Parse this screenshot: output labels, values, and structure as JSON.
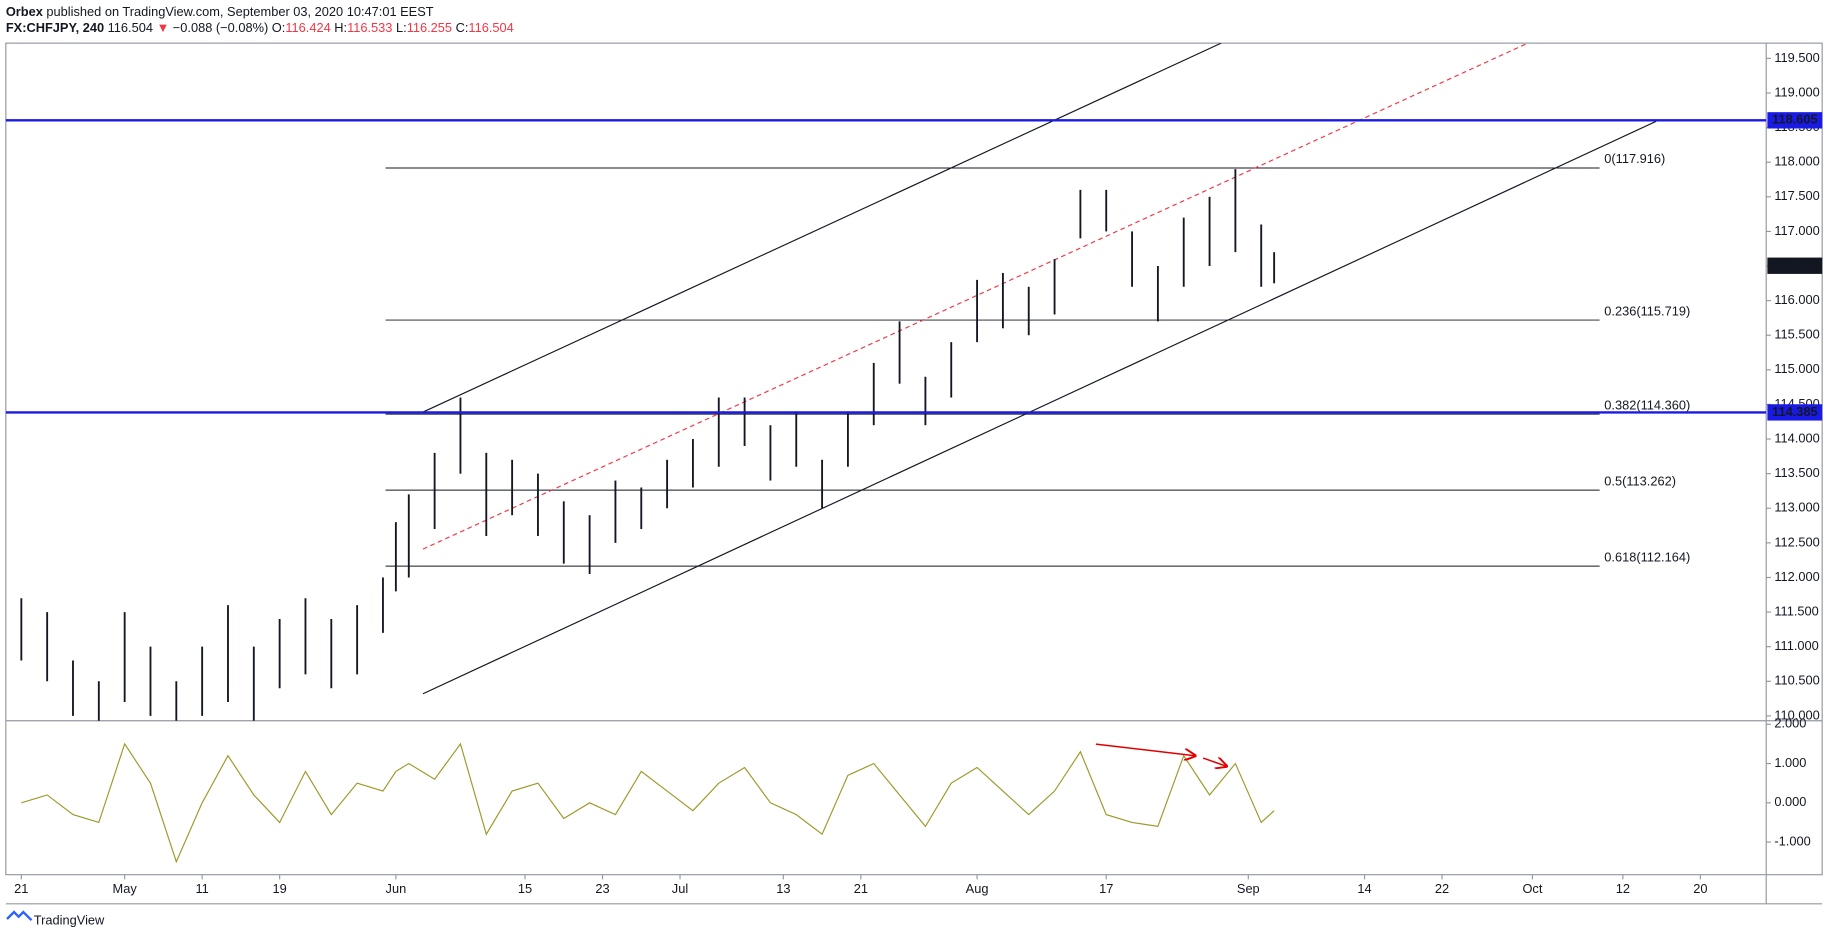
{
  "header": {
    "publisher": "Orbex",
    "published": "published on TradingView.com, September 03, 2020 10:47:01 EEST",
    "symbol": "FX:CHFJPY, 240",
    "last": "116.504",
    "change_arrow": "▼",
    "change": "−0.088 (−0.08%)",
    "o_label": "O:",
    "open": "116.424",
    "h_label": "H:",
    "high": "116.533",
    "l_label": "L:",
    "low": "116.255",
    "c_label": "C:",
    "close": "116.504"
  },
  "footer": {
    "brand": "TradingView"
  },
  "chart_data": [
    {
      "type": "ohlc",
      "color": "#131722",
      "x": [
        0,
        2,
        4,
        6,
        8,
        10,
        12,
        14,
        16,
        18,
        20,
        22,
        24,
        26,
        28,
        29,
        30,
        32,
        34,
        36,
        38,
        40,
        42,
        44,
        46,
        48,
        50,
        52,
        54,
        56,
        58,
        60,
        62,
        64,
        66,
        68,
        70,
        72,
        74,
        76,
        78,
        80,
        82,
        84,
        86,
        88,
        90,
        92,
        94,
        96,
        97
      ],
      "high": [
        111.7,
        111.5,
        110.8,
        110.5,
        111.5,
        111.0,
        110.5,
        111.0,
        111.6,
        111.0,
        111.4,
        111.7,
        111.4,
        111.6,
        112.0,
        112.8,
        113.2,
        113.8,
        114.6,
        113.8,
        113.7,
        113.5,
        113.1,
        112.9,
        113.4,
        113.3,
        113.7,
        114.0,
        114.6,
        114.6,
        114.2,
        114.4,
        113.7,
        114.4,
        115.1,
        115.7,
        114.9,
        115.4,
        116.3,
        116.4,
        116.2,
        116.6,
        117.6,
        117.6,
        117.0,
        116.5,
        117.2,
        117.5,
        117.9,
        117.1,
        116.7
      ],
      "low": [
        110.8,
        110.5,
        110.0,
        109.8,
        110.2,
        110.0,
        109.8,
        110.0,
        110.2,
        109.9,
        110.4,
        110.6,
        110.4,
        110.6,
        111.2,
        111.8,
        112.0,
        112.7,
        113.5,
        112.6,
        112.9,
        112.6,
        112.2,
        112.05,
        112.5,
        112.7,
        113.0,
        113.3,
        113.6,
        113.9,
        113.4,
        113.6,
        113.0,
        113.6,
        114.2,
        114.8,
        114.2,
        114.6,
        115.4,
        115.6,
        115.5,
        115.8,
        116.9,
        117.0,
        116.2,
        115.7,
        116.2,
        116.5,
        116.7,
        116.2,
        116.25
      ],
      "xlim": [
        -1.2,
        135.1
      ],
      "ylim": [
        109.93,
        119.72
      ],
      "yticks": [
        {
          "value": 110,
          "label": "110.000"
        },
        {
          "value": 110.5,
          "label": "110.500"
        },
        {
          "value": 111,
          "label": "111.000"
        },
        {
          "value": 111.5,
          "label": "111.500"
        },
        {
          "value": 112,
          "label": "112.000"
        },
        {
          "value": 112.5,
          "label": "112.500"
        },
        {
          "value": 113,
          "label": "113.000"
        },
        {
          "value": 113.5,
          "label": "113.500"
        },
        {
          "value": 114,
          "label": "114.000"
        },
        {
          "value": 114.5,
          "label": "114.500"
        },
        {
          "value": 115,
          "label": "115.000"
        },
        {
          "value": 115.5,
          "label": "115.500"
        },
        {
          "value": 116,
          "label": "116.000"
        },
        {
          "value": 116.5,
          "label": "116.500"
        },
        {
          "value": 117,
          "label": "117.000"
        },
        {
          "value": 117.5,
          "label": "117.500"
        },
        {
          "value": 118,
          "label": "118.000"
        },
        {
          "value": 118.5,
          "label": "118.500"
        },
        {
          "value": 119,
          "label": "119.000"
        },
        {
          "value": 119.5,
          "label": "119.500"
        }
      ],
      "hlines": [
        {
          "value": 118.605,
          "color": "#1a1ae6"
        },
        {
          "value": 114.385,
          "color": "#1a1ae6"
        }
      ],
      "fib_range": [
        28.2,
        122.2
      ],
      "fib": [
        {
          "value": 117.916,
          "label": "0(117.916)"
        },
        {
          "value": 115.719,
          "label": "0.236(115.719)"
        },
        {
          "value": 114.36,
          "label": "0.382(114.360)"
        },
        {
          "value": 113.262,
          "label": "0.5(113.262)"
        },
        {
          "value": 112.164,
          "label": "0.618(112.164)"
        }
      ],
      "trendlines": [
        {
          "x": [
            31.1,
            92.9
          ],
          "y": [
            114.39,
            119.72
          ],
          "color": "#131722",
          "dashed": false
        },
        {
          "x": [
            31.1,
            126.57
          ],
          "y": [
            110.32,
            118.59
          ],
          "color": "#131722",
          "dashed": false
        },
        {
          "x": [
            31.1,
            116.64
          ],
          "y": [
            112.41,
            119.72
          ],
          "color": "#f23645",
          "dashed": true
        }
      ],
      "last": 116.504
    },
    {
      "type": "line",
      "color": "#9c9a2a",
      "x": [
        0,
        2,
        4,
        6,
        8,
        10,
        12,
        14,
        16,
        18,
        20,
        22,
        24,
        26,
        28,
        29,
        30,
        32,
        34,
        36,
        38,
        40,
        42,
        44,
        46,
        48,
        50,
        52,
        54,
        56,
        58,
        60,
        62,
        64,
        66,
        68,
        70,
        72,
        74,
        76,
        78,
        80,
        82,
        84,
        86,
        88,
        90,
        92,
        94,
        96,
        97
      ],
      "values": [
        0.0,
        0.2,
        -0.3,
        -0.5,
        1.5,
        0.5,
        -1.5,
        0.0,
        1.2,
        0.2,
        -0.5,
        0.8,
        -0.3,
        0.5,
        0.3,
        0.8,
        1.0,
        0.6,
        1.5,
        -0.8,
        0.3,
        0.5,
        -0.4,
        0.0,
        -0.3,
        0.8,
        0.3,
        -0.2,
        0.5,
        0.9,
        0.0,
        -0.3,
        -0.8,
        0.7,
        1.0,
        0.2,
        -0.6,
        0.5,
        0.9,
        0.3,
        -0.3,
        0.3,
        1.3,
        -0.3,
        -0.5,
        -0.6,
        1.2,
        0.2,
        1.0,
        -0.5,
        -0.2
      ],
      "xlim": [
        -1.2,
        135.1
      ],
      "ylim": [
        -1.83,
        2.06
      ],
      "yticks": [
        {
          "value": 2,
          "label": "2.000"
        },
        {
          "value": 1,
          "label": "1.000"
        },
        {
          "value": 0,
          "label": "0.000"
        },
        {
          "value": -1,
          "label": "-1.000"
        }
      ],
      "xticks": [
        {
          "value": 0,
          "label": "21"
        },
        {
          "value": 8,
          "label": "May"
        },
        {
          "value": 14,
          "label": "11"
        },
        {
          "value": 20,
          "label": "19"
        },
        {
          "value": 29,
          "label": "Jun"
        },
        {
          "value": 39,
          "label": "15"
        },
        {
          "value": 45,
          "label": "23"
        },
        {
          "value": 51,
          "label": "Jul"
        },
        {
          "value": 59,
          "label": "13"
        },
        {
          "value": 65,
          "label": "21"
        },
        {
          "value": 74,
          "label": "Aug"
        },
        {
          "value": 84,
          "label": "17"
        },
        {
          "value": 95,
          "label": "Sep"
        },
        {
          "value": 104,
          "label": "14"
        },
        {
          "value": 110,
          "label": "22"
        },
        {
          "value": 117,
          "label": "Oct"
        },
        {
          "value": 124,
          "label": "12"
        },
        {
          "value": 130,
          "label": "20"
        }
      ]
    }
  ]
}
